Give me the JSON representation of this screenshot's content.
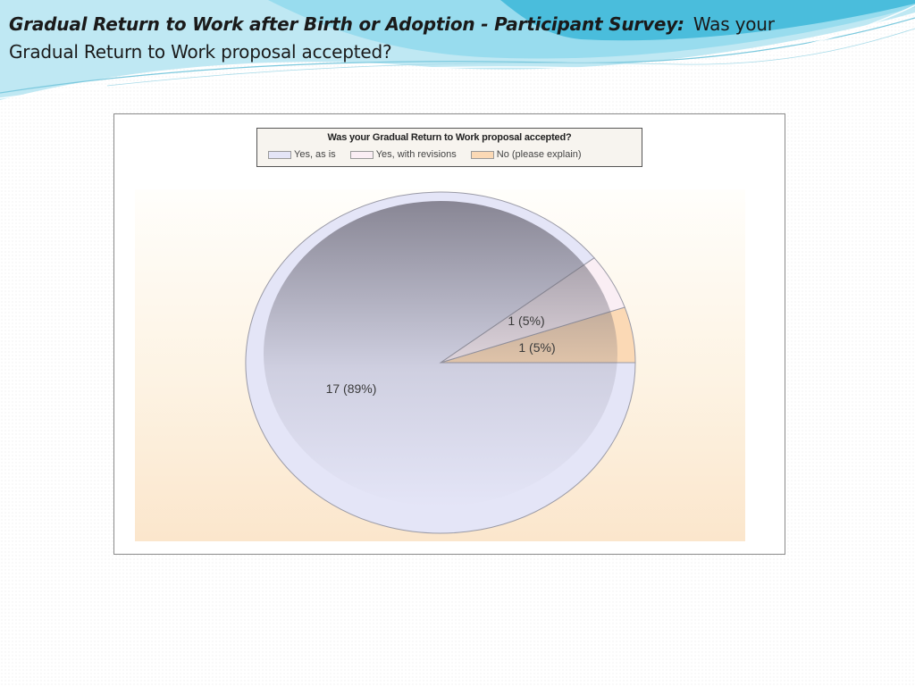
{
  "slide": {
    "title_lead": "Gradual Return to Work after Birth or Adoption - Participant Survey:",
    "title_rest": "Was your Gradual Return to Work proposal accepted?"
  },
  "chart_data": {
    "type": "pie",
    "title": "Was your Gradual Return to Work proposal accepted?",
    "legend_position": "top",
    "slices": [
      {
        "label": "Yes, as is",
        "value": 17,
        "percent": 89,
        "data_label": "17 (89%)",
        "color": "#e4e5f7"
      },
      {
        "label": "Yes, with revisions",
        "value": 1,
        "percent": 5,
        "data_label": "1 (5%)",
        "color": "#faeef4"
      },
      {
        "label": "No (please explain)",
        "value": 1,
        "percent": 5,
        "data_label": "1 (5%)",
        "color": "#fbd9b5"
      }
    ]
  },
  "colors": {
    "swoosh_primary": "#3cb7d8",
    "swoosh_light": "#a8e2f0",
    "shade_dark": "#6e6b78",
    "slice_border": "#9a9aa6"
  }
}
